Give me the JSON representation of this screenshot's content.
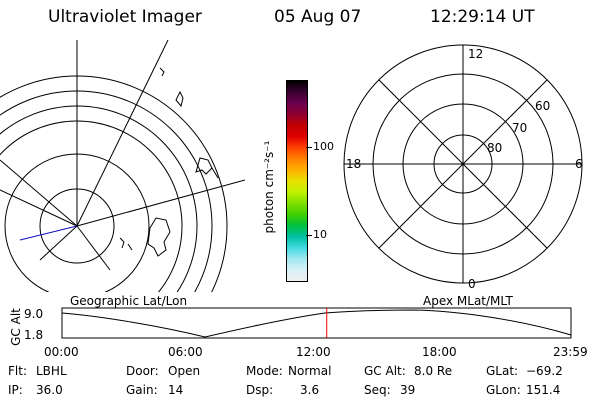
{
  "header": {
    "instrument": "Ultraviolet Imager",
    "date": "05 Aug 07",
    "time": "12:29:14 UT"
  },
  "colorbar": {
    "unit_label": "photon cm⁻²s⁻¹",
    "tick_labels": [
      "100",
      "10"
    ],
    "colors": [
      "#000000",
      "#3a0030",
      "#6a0050",
      "#900030",
      "#c00000",
      "#e00000",
      "#ff4000",
      "#ff8000",
      "#ffb000",
      "#e8e000",
      "#c0f000",
      "#80e000",
      "#40d000",
      "#00c040",
      "#00c0a0",
      "#40d8e0",
      "#a0e8f0",
      "#d8f0f8",
      "#f0f0f0"
    ]
  },
  "left_map": {
    "label": "Geographic Lat/Lon"
  },
  "right_map": {
    "label": "Apex  MLat/MLT",
    "mlt_labels": [
      "12",
      "18",
      "6",
      "0"
    ],
    "mlat_labels": [
      "60",
      "70",
      "80"
    ]
  },
  "timeline": {
    "y_label": "GC Alt",
    "y_ticks": [
      "9.0",
      "1.8"
    ],
    "x_ticks": [
      "00:00",
      "06:00",
      "12:00",
      "18:00",
      "23:59"
    ],
    "current_time_marker": "12:29",
    "marker_color": "#ff0000"
  },
  "info": {
    "flt_label": "Flt:",
    "flt_value": "LBHL",
    "ip_label": "IP:",
    "ip_value": "36.0",
    "door_label": "Door:",
    "door_value": "Open",
    "gain_label": "Gain:",
    "gain_value": "14",
    "mode_label": "Mode:",
    "mode_value": "Normal",
    "dsp_label": "Dsp:",
    "dsp_value": "3.6",
    "gcalt_label": "GC Alt:",
    "gcalt_value": "8.0 Re",
    "seq_label": "Seq:",
    "seq_value": "39",
    "glat_label": "GLat:",
    "glat_value": "−69.2",
    "glon_label": "GLon:",
    "glon_value": "151.4"
  }
}
